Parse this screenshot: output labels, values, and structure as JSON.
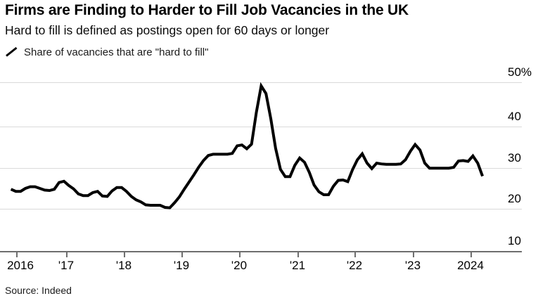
{
  "header": {
    "title": "Firms are Finding to Harder to Fill Job Vacancies in the UK",
    "subtitle": "Hard to fill is defined as postings open for 60 days or longer"
  },
  "legend": {
    "label": "Share of vacancies that are \"hard to fill\""
  },
  "source": {
    "label": "Source: Indeed"
  },
  "chart_data": {
    "type": "line",
    "title": "Firms are Finding to Harder to Fill Job Vacancies in the UK",
    "subtitle": "Hard to fill is defined as postings open for 60 days or longer",
    "series_name": "Share of vacancies that are \"hard to fill\"",
    "unit": "%",
    "frequency": "monthly",
    "x_start": "2016-01",
    "x_end": "2024-03",
    "xlim_years": [
      2016,
      2024.75
    ],
    "ylim": [
      10,
      50
    ],
    "y_ticks": [
      50,
      40,
      30,
      20,
      10
    ],
    "y_tick_labels": [
      "50%",
      "40",
      "30",
      "20",
      "10"
    ],
    "x_tick_labels": [
      "2016",
      "'17",
      "'18",
      "'19",
      "'20",
      "'21",
      "'22",
      "'23",
      "2024"
    ],
    "grid": "horizontal",
    "legend_position": "top-left",
    "line_color": "#000000",
    "grid_color": "#dadada",
    "axis_color": "#6e6e6e",
    "series": [
      {
        "name": "Share of vacancies that are \"hard to fill\"",
        "values": [
          24.8,
          24.3,
          24.3,
          25.0,
          25.4,
          25.4,
          25.0,
          24.6,
          24.5,
          24.8,
          26.4,
          26.7,
          25.7,
          24.9,
          23.7,
          23.3,
          23.3,
          24.0,
          24.3,
          23.2,
          23.1,
          24.4,
          25.2,
          25.2,
          24.3,
          23.1,
          22.3,
          21.8,
          21.1,
          21.0,
          21.0,
          21.0,
          20.5,
          20.4,
          21.6,
          23.0,
          24.8,
          26.5,
          28.2,
          30.0,
          31.6,
          32.8,
          33.1,
          33.1,
          33.1,
          33.1,
          33.3,
          35.1,
          35.3,
          34.4,
          35.5,
          43.0,
          49.3,
          47.5,
          41.5,
          34.5,
          29.5,
          27.8,
          27.8,
          30.5,
          32.2,
          31.2,
          28.8,
          25.8,
          24.2,
          23.5,
          23.5,
          25.5,
          26.9,
          27.0,
          26.6,
          29.5,
          31.8,
          33.2,
          31.0,
          29.7,
          31.0,
          30.8,
          30.7,
          30.7,
          30.7,
          30.8,
          31.8,
          33.8,
          35.4,
          34.1,
          31.0,
          29.8,
          29.8,
          29.8,
          29.8,
          29.8,
          30.0,
          31.5,
          31.6,
          31.4,
          32.7,
          31.0,
          27.9
        ]
      }
    ]
  }
}
